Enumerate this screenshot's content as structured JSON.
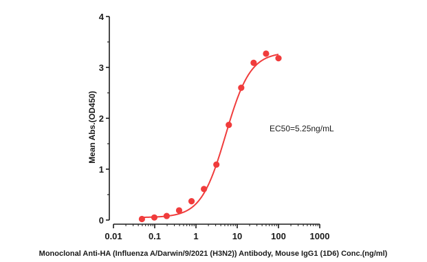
{
  "chart_data": {
    "type": "scatter",
    "title": "",
    "xlabel": "Monoclonal Anti-HA (Influenza A/Darwin/9/2021 (H3N2)) Antibody, Mouse IgG1 (1D6) Conc.(ng/ml)",
    "ylabel": "Mean Abs.(OD450)",
    "x_scale": "log",
    "xlim": [
      0.01,
      1000
    ],
    "ylim": [
      0,
      4
    ],
    "x_ticks": [
      "0.01",
      "0.1",
      "1",
      "10",
      "100",
      "1000"
    ],
    "y_ticks": [
      "0",
      "1",
      "2",
      "3",
      "4"
    ],
    "grid": false,
    "legend": "none",
    "annotation": "EC50=5.25ng/mL",
    "colors": {
      "series": "#f03c3c",
      "axis": "#1a1a1a"
    },
    "series": [
      {
        "x": [
          0.049,
          0.098,
          0.195,
          0.39,
          0.781,
          1.563,
          3.125,
          6.25,
          12.5,
          25,
          50,
          100
        ],
        "y": [
          0.02,
          0.05,
          0.08,
          0.19,
          0.37,
          0.61,
          1.09,
          1.87,
          2.6,
          3.09,
          3.27,
          3.18
        ],
        "fit": {
          "model": "4PL",
          "bottom": 0.05,
          "top": 3.3,
          "ec50": 5.25,
          "hill": 1.45
        }
      }
    ]
  }
}
